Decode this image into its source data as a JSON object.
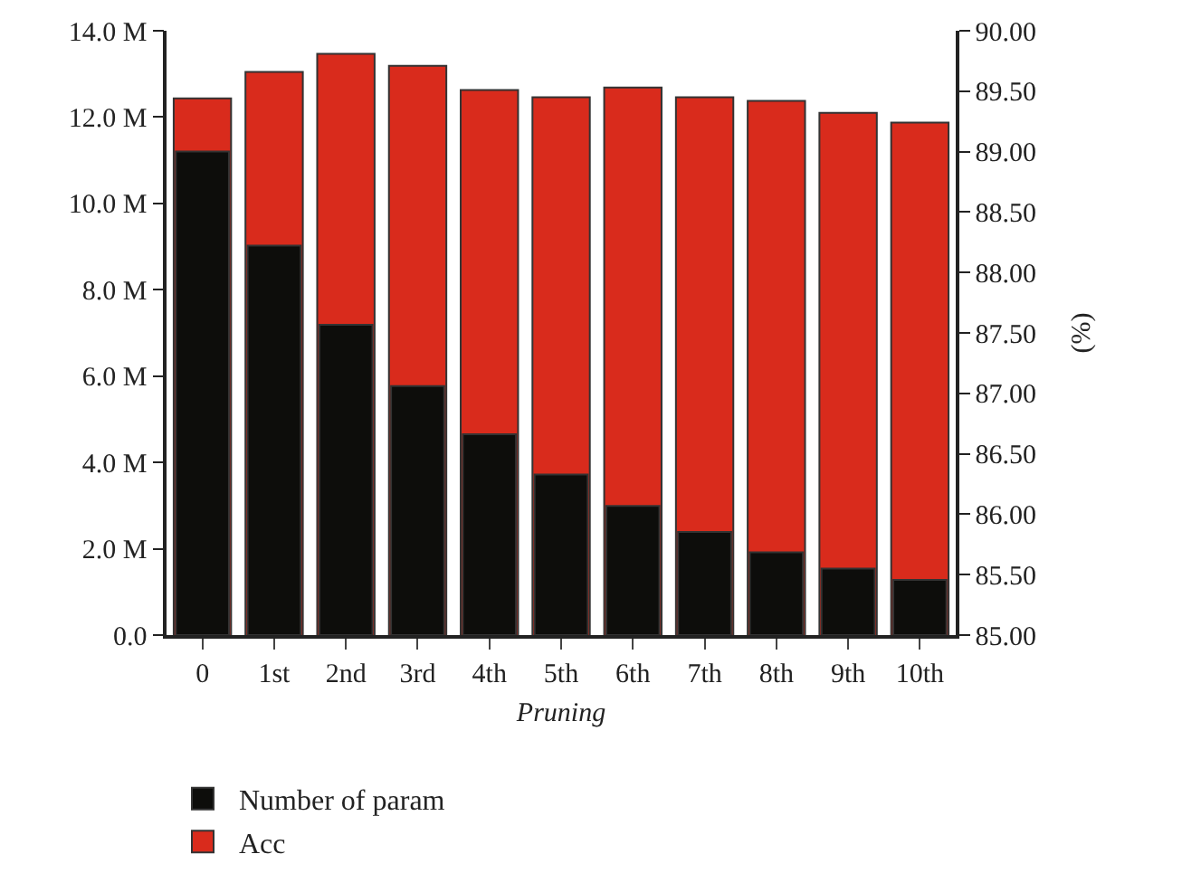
{
  "chart_data": {
    "type": "bar",
    "xlabel": "Pruning",
    "y2label": "(%)",
    "categories": [
      "0",
      "1st",
      "2nd",
      "3rd",
      "4th",
      "5th",
      "6th",
      "7th",
      "8th",
      "9th",
      "10th"
    ],
    "series": [
      {
        "name": "Number of param",
        "color": "#0d0d0b",
        "values": [
          11.2,
          9.02,
          7.19,
          5.77,
          4.65,
          3.72,
          2.99,
          2.39,
          1.92,
          1.54,
          1.28
        ]
      },
      {
        "name": "Acc",
        "color": "#d92b1c",
        "axis": "y2",
        "values": [
          89.44,
          89.66,
          89.81,
          89.71,
          89.51,
          89.45,
          89.53,
          89.45,
          89.42,
          89.32,
          89.24
        ]
      }
    ],
    "ylim": [
      0,
      14
    ],
    "yticks": [
      {
        "value": 0,
        "label": "0.0"
      },
      {
        "value": 2,
        "label": "2.0 M"
      },
      {
        "value": 4,
        "label": "4.0 M"
      },
      {
        "value": 6,
        "label": "6.0 M"
      },
      {
        "value": 8,
        "label": "8.0 M"
      },
      {
        "value": 10,
        "label": "10.0 M"
      },
      {
        "value": 12,
        "label": "12.0 M"
      },
      {
        "value": 14,
        "label": "14.0 M"
      }
    ],
    "y2lim": [
      85,
      90
    ],
    "y2ticks": [
      {
        "value": 85,
        "label": "85.00"
      },
      {
        "value": 85.5,
        "label": "85.50"
      },
      {
        "value": 86,
        "label": "86.00"
      },
      {
        "value": 86.5,
        "label": "86.50"
      },
      {
        "value": 87,
        "label": "87.00"
      },
      {
        "value": 87.5,
        "label": "87.50"
      },
      {
        "value": 88,
        "label": "88.00"
      },
      {
        "value": 88.5,
        "label": "88.50"
      },
      {
        "value": 89,
        "label": "89.00"
      },
      {
        "value": 89.5,
        "label": "89.50"
      },
      {
        "value": 90,
        "label": "90.00"
      }
    ],
    "legend": "bottom left"
  }
}
